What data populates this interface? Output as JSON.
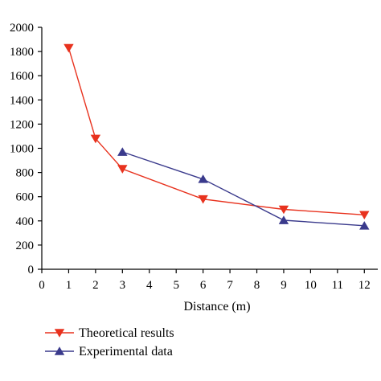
{
  "chart_data": {
    "type": "line",
    "title": "",
    "xlabel": "Distance (m)",
    "ylabel": "",
    "xlim": [
      0,
      12.5
    ],
    "ylim": [
      0,
      2000
    ],
    "xticks": [
      0,
      1,
      2,
      3,
      4,
      5,
      6,
      7,
      8,
      9,
      10,
      11,
      12
    ],
    "yticks": [
      0,
      200,
      400,
      600,
      800,
      1000,
      1200,
      1400,
      1600,
      1800,
      2000
    ],
    "grid": false,
    "legend_position": "bottom-left, below the plot",
    "series": [
      {
        "name": "Theoretical results",
        "color": "#e8321e",
        "marker": "triangle-down",
        "x": [
          1,
          2,
          3,
          6,
          9,
          12
        ],
        "y": [
          1830,
          1080,
          830,
          580,
          495,
          450
        ]
      },
      {
        "name": "Experimental data",
        "color": "#3a3a8c",
        "marker": "triangle-up",
        "x": [
          3,
          6,
          9,
          12
        ],
        "y": [
          970,
          745,
          405,
          360
        ]
      }
    ]
  }
}
